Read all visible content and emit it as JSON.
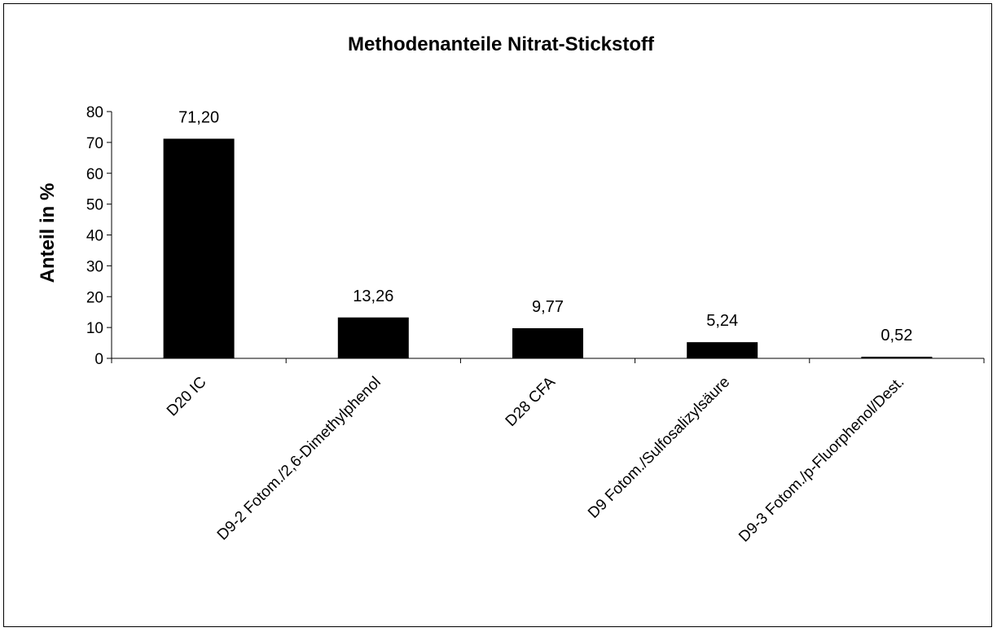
{
  "chart_data": {
    "type": "bar",
    "title": "Methodenanteile Nitrat-Stickstoff",
    "ylabel": "Anteil in %",
    "xlabel": "",
    "ylim": [
      0,
      80
    ],
    "yticks": [
      "0",
      "10",
      "20",
      "30",
      "40",
      "50",
      "60",
      "70",
      "80"
    ],
    "categories": [
      "D20 IC",
      "D9-2 Fotom./2,6-Dimethylphenol",
      "D28 CFA",
      "D9 Fotom./Sulfosalizylsäure",
      "D9-3 Fotom./p-Fluorphenol/Dest."
    ],
    "values": [
      71.2,
      13.26,
      9.77,
      5.24,
      0.52
    ],
    "value_labels": [
      "71,20",
      "13,26",
      "9,77",
      "5,24",
      "0,52"
    ],
    "bar_color": "#000000",
    "grid": false,
    "legend": "none"
  }
}
